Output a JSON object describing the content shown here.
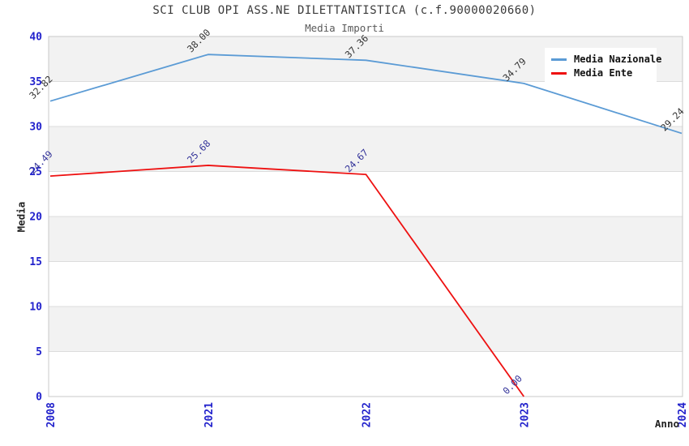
{
  "colors": {
    "background": "#ffffff",
    "band_gray": "#f2f2f2",
    "grid_line": "#dcdcdc",
    "plot_border": "#c8c8c8",
    "tick_label": "#2222cc",
    "title_text": "#3a3a3a",
    "nazionale_line": "#5b9bd5",
    "ente_line": "#ee1111",
    "nazionale_point_label": "#333333",
    "ente_point_label": "#333399"
  },
  "chart_data": {
    "type": "line",
    "title": "SCI CLUB OPI ASS.NE DILETTANTISTICA (c.f.90000020660)",
    "subtitle": "Media Importi",
    "xlabel": "Anno",
    "ylabel": "Media",
    "categories": [
      "2008",
      "2021",
      "2022",
      "2023",
      "2024"
    ],
    "ylim": [
      0,
      40
    ],
    "ytick_step": 5,
    "ytick_labels": [
      "0",
      "5",
      "10",
      "15",
      "20",
      "25",
      "30",
      "35",
      "40"
    ],
    "grid": "horizontal-bands-alternating",
    "legend_position": "top-right",
    "series": [
      {
        "name": "Media Nazionale",
        "color": "#5b9bd5",
        "label_color": "#333333",
        "values": [
          32.82,
          38.0,
          37.36,
          34.79,
          29.24
        ],
        "point_labels": [
          "32.82",
          "38.00",
          "37.36",
          "34.79",
          "29.24"
        ]
      },
      {
        "name": "Media Ente",
        "color": "#ee1111",
        "label_color": "#333399",
        "values": [
          24.49,
          25.68,
          24.67,
          0.0,
          null
        ],
        "point_labels": [
          "24.49",
          "25.68",
          "24.67",
          "0.00",
          null
        ]
      }
    ]
  }
}
